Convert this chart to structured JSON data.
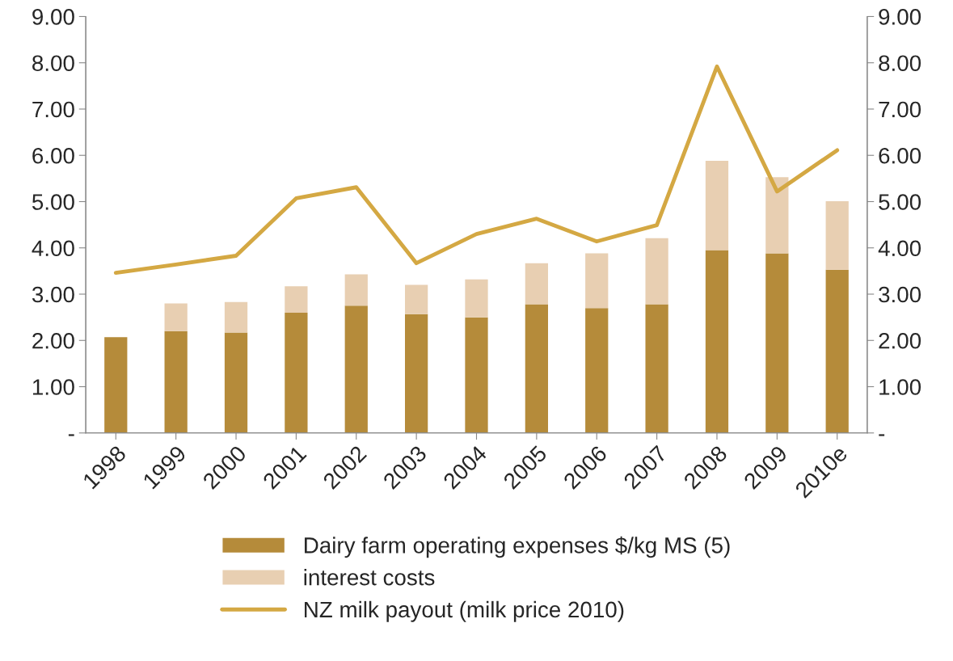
{
  "chart_data": {
    "type": "bar",
    "stacked": true,
    "categories": [
      "1998",
      "1999",
      "2000",
      "2001",
      "2002",
      "2003",
      "2004",
      "2005",
      "2006",
      "2007",
      "2008",
      "2009",
      "2010e"
    ],
    "series": [
      {
        "name": "Dairy farm operating expenses $/kg MS (5)",
        "color": "#b58b3a",
        "values": [
          2.07,
          2.2,
          2.17,
          2.6,
          2.75,
          2.57,
          2.5,
          2.78,
          2.7,
          2.78,
          3.95,
          3.88,
          3.53
        ]
      },
      {
        "name": "interest costs",
        "color": "#e8cfb2",
        "values": [
          null,
          0.6,
          0.66,
          0.57,
          0.68,
          0.63,
          0.82,
          0.89,
          1.18,
          1.43,
          1.93,
          1.65,
          1.48
        ]
      },
      {
        "name": "NZ milk payout (milk price 2010)",
        "type": "line",
        "color": "#d4a843",
        "values": [
          3.46,
          3.64,
          3.83,
          5.07,
          5.31,
          3.67,
          4.3,
          4.63,
          4.14,
          4.49,
          7.92,
          5.22,
          6.11
        ]
      }
    ],
    "ylim": [
      0,
      9
    ],
    "yticks": [
      {
        "value": 0,
        "label": "-"
      },
      {
        "value": 1,
        "label": "1.00"
      },
      {
        "value": 2,
        "label": "2.00"
      },
      {
        "value": 3,
        "label": "3.00"
      },
      {
        "value": 4,
        "label": "4.00"
      },
      {
        "value": 5,
        "label": "5.00"
      },
      {
        "value": 6,
        "label": "6.00"
      },
      {
        "value": 7,
        "label": "7.00"
      },
      {
        "value": 8,
        "label": "8.00"
      },
      {
        "value": 9,
        "label": "9.00"
      }
    ],
    "y2lim": [
      0,
      9
    ],
    "y2ticks": [
      {
        "value": 0,
        "label": "-"
      },
      {
        "value": 1,
        "label": "1.00"
      },
      {
        "value": 2,
        "label": "2.00"
      },
      {
        "value": 3,
        "label": "3.00"
      },
      {
        "value": 4,
        "label": "4.00"
      },
      {
        "value": 5,
        "label": "5.00"
      },
      {
        "value": 6,
        "label": "6.00"
      },
      {
        "value": 7,
        "label": "7.00"
      },
      {
        "value": 8,
        "label": "8.00"
      },
      {
        "value": 9,
        "label": "9.00"
      }
    ],
    "legend": "bottom",
    "grid": false,
    "marker": "none",
    "line_style": "solid"
  }
}
